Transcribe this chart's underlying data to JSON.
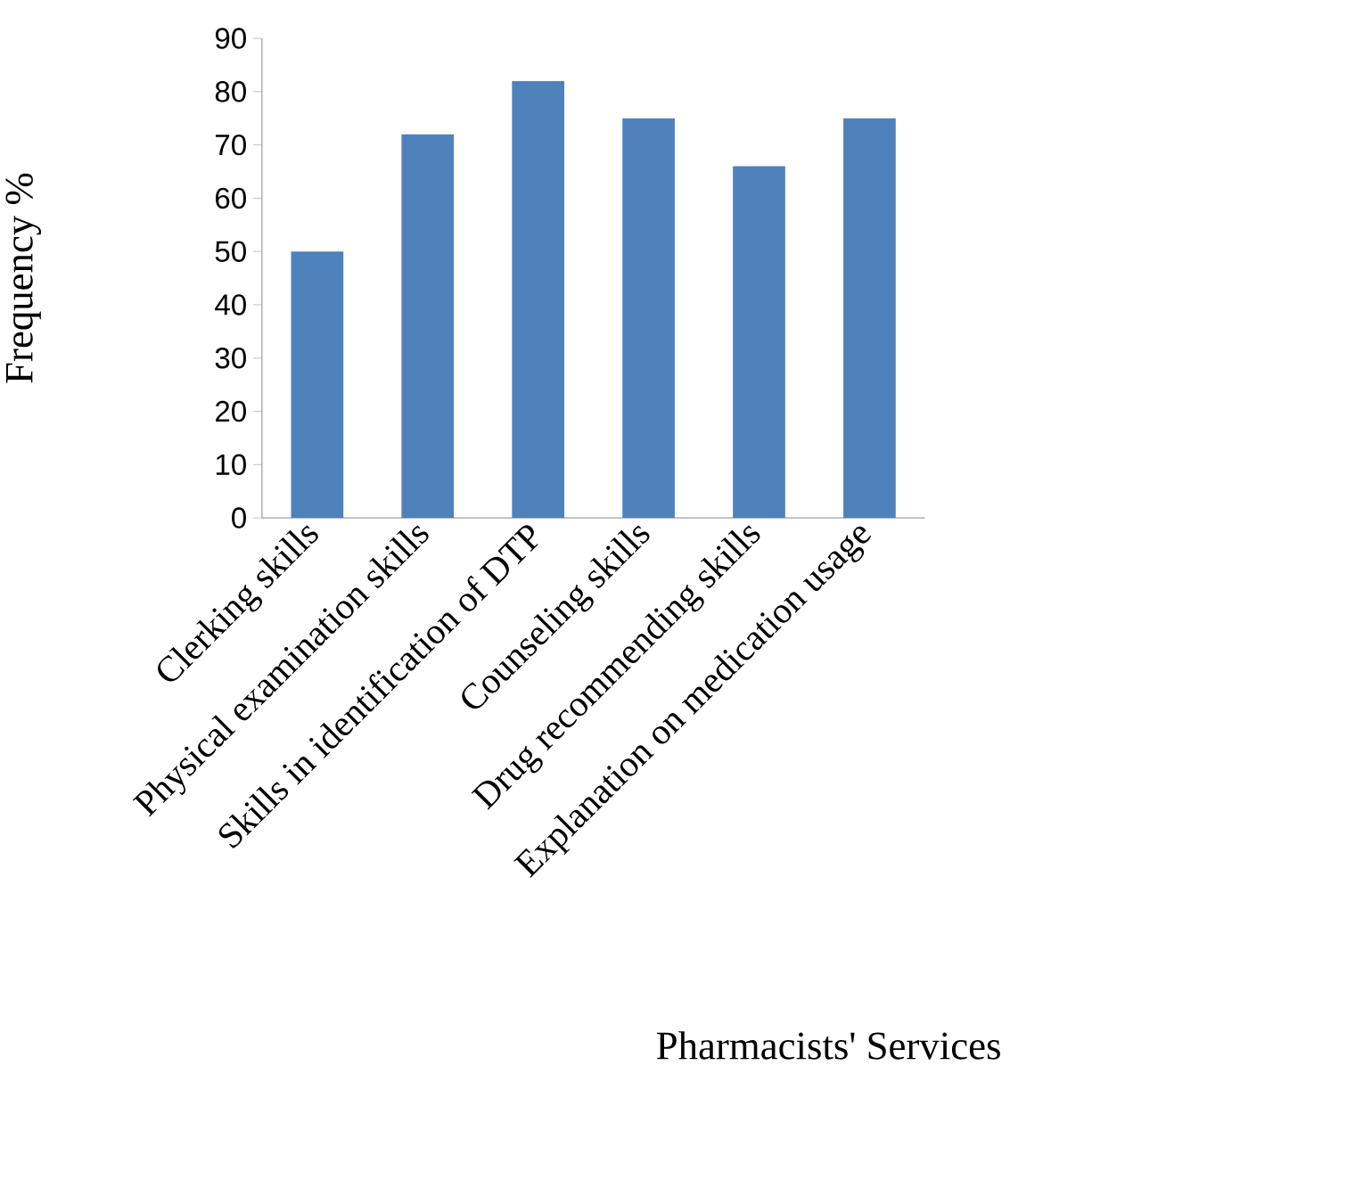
{
  "chart_data": {
    "type": "bar",
    "xlabel": "Pharmacists' Services",
    "ylabel": "Frequency %",
    "categories": [
      "Clerking skills",
      "Physical examination skills",
      "Skills in identification of DTP",
      "Counseling skills",
      "Drug recommending skills",
      "Explanation on medication usage"
    ],
    "values": [
      50,
      72,
      82,
      75,
      66,
      75
    ],
    "color": "#4f81bd",
    "ylim": [
      0,
      90
    ],
    "yticks": [
      0,
      10,
      20,
      30,
      40,
      50,
      60,
      70,
      80,
      90
    ]
  }
}
